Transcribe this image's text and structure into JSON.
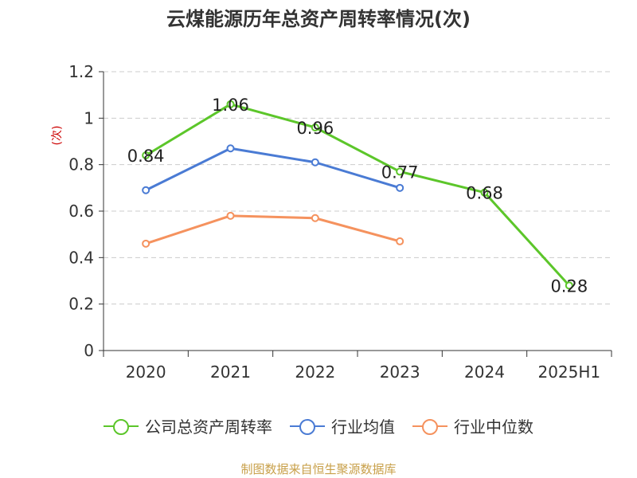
{
  "title": "云煤能源历年总资产周转率情况(次)",
  "source": "制图数据来自恒生聚源数据库",
  "chart_data": {
    "type": "line",
    "title": "云煤能源历年总资产周转率情况(次)",
    "ylabel": "(次)",
    "xlabel": "",
    "categories": [
      "2020",
      "2021",
      "2022",
      "2023",
      "2024",
      "2025H1"
    ],
    "ylim": [
      0,
      1.2
    ],
    "yticks": [
      "0",
      "0.2",
      "0.4",
      "0.6",
      "0.8",
      "1",
      "1.2"
    ],
    "grid": true,
    "legend_position": "bottom",
    "series": [
      {
        "name": "公司总资产周转率",
        "color": "#5cc62a",
        "values": [
          0.84,
          1.06,
          0.96,
          0.77,
          0.68,
          0.28
        ],
        "show_labels": true
      },
      {
        "name": "行业均值",
        "color": "#4a7bd4",
        "values": [
          0.69,
          0.87,
          0.81,
          0.7,
          null,
          null
        ],
        "show_labels": false
      },
      {
        "name": "行业中位数",
        "color": "#f5925e",
        "values": [
          0.46,
          0.58,
          0.57,
          0.47,
          null,
          null
        ],
        "show_labels": false
      }
    ]
  }
}
